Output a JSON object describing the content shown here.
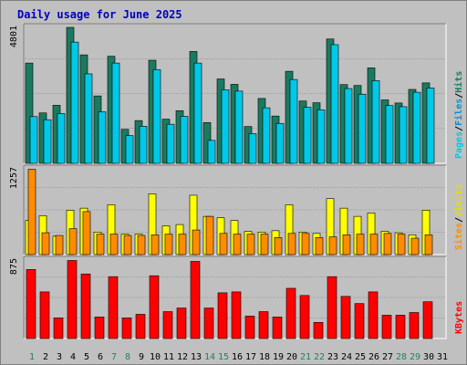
{
  "chart_data": {
    "type": "bar",
    "title": "Daily usage for June 2025",
    "x": [
      "1",
      "2",
      "3",
      "4",
      "5",
      "6",
      "7",
      "8",
      "9",
      "10",
      "11",
      "12",
      "13",
      "14",
      "15",
      "16",
      "17",
      "18",
      "19",
      "20",
      "21",
      "22",
      "23",
      "24",
      "25",
      "26",
      "27",
      "28",
      "29",
      "30",
      "31"
    ],
    "weekend_days": [
      "1",
      "7",
      "8",
      "14",
      "15",
      "21",
      "22",
      "28",
      "29"
    ],
    "panels": [
      {
        "id": "hits-files-pages",
        "max_label": "4801",
        "ymax": 4801,
        "right_labels": [
          "Pages",
          "/",
          "Files",
          "/",
          "Hits"
        ],
        "series": [
          {
            "name": "Hits",
            "color": "#1a7a60",
            "values": [
              3540,
              1780,
              2050,
              4800,
              3830,
              2380,
              3780,
              1200,
              1510,
              3640,
              1560,
              1860,
              3950,
              1440,
              2980,
              2790,
              1300,
              2290,
              1670,
              3250,
              2200,
              2140,
              4390,
              2780,
              2750,
              3370,
              2240,
              2130,
              2610,
              2840,
              0
            ]
          },
          {
            "name": "Files",
            "color": "#00c8e8",
            "values": [
              1650,
              1540,
              1760,
              4280,
              3160,
              1820,
              3540,
              980,
              1310,
              3310,
              1380,
              1660,
              3540,
              810,
              2600,
              2550,
              1050,
              1960,
              1410,
              2960,
              1980,
              1890,
              4190,
              2640,
              2440,
              2920,
              2040,
              2000,
              2510,
              2660,
              0
            ]
          },
          {
            "name": "Pages",
            "color": "#00c8e8",
            "values": [
              0
            ]
          }
        ]
      },
      {
        "id": "visits-sites",
        "max_label": "1257",
        "ymax": 1257,
        "right_labels": [
          "Sites",
          "/",
          "Visits"
        ],
        "series": [
          {
            "name": "Visits",
            "color": "#ffff00",
            "values": [
              500,
              570,
              270,
              650,
              680,
              330,
              730,
              300,
              300,
              890,
              420,
              440,
              870,
              560,
              540,
              500,
              340,
              330,
              350,
              730,
              330,
              310,
              820,
              680,
              560,
              610,
              340,
              320,
              290,
              650,
              0
            ]
          },
          {
            "name": "Sites",
            "color": "#ff8c00",
            "values": [
              1250,
              320,
              280,
              380,
              630,
              300,
              300,
              280,
              280,
              290,
              300,
              300,
              360,
              560,
              310,
              300,
              300,
              300,
              250,
              310,
              310,
              250,
              260,
              290,
              300,
              300,
              310,
              300,
              240,
              290,
              0
            ]
          }
        ]
      },
      {
        "id": "kbytes",
        "max_label": "875",
        "ymax": 875,
        "right_labels": [
          "KBytes"
        ],
        "series": [
          {
            "name": "KBytes",
            "color": "#ff0000",
            "values": [
              770,
              520,
              230,
              870,
              720,
              240,
              690,
              230,
              270,
              700,
              300,
              340,
              860,
              340,
              510,
              520,
              250,
              300,
              240,
              560,
              480,
              180,
              690,
              470,
              390,
              520,
              260,
              260,
              290,
              410,
              0
            ]
          }
        ]
      }
    ]
  }
}
